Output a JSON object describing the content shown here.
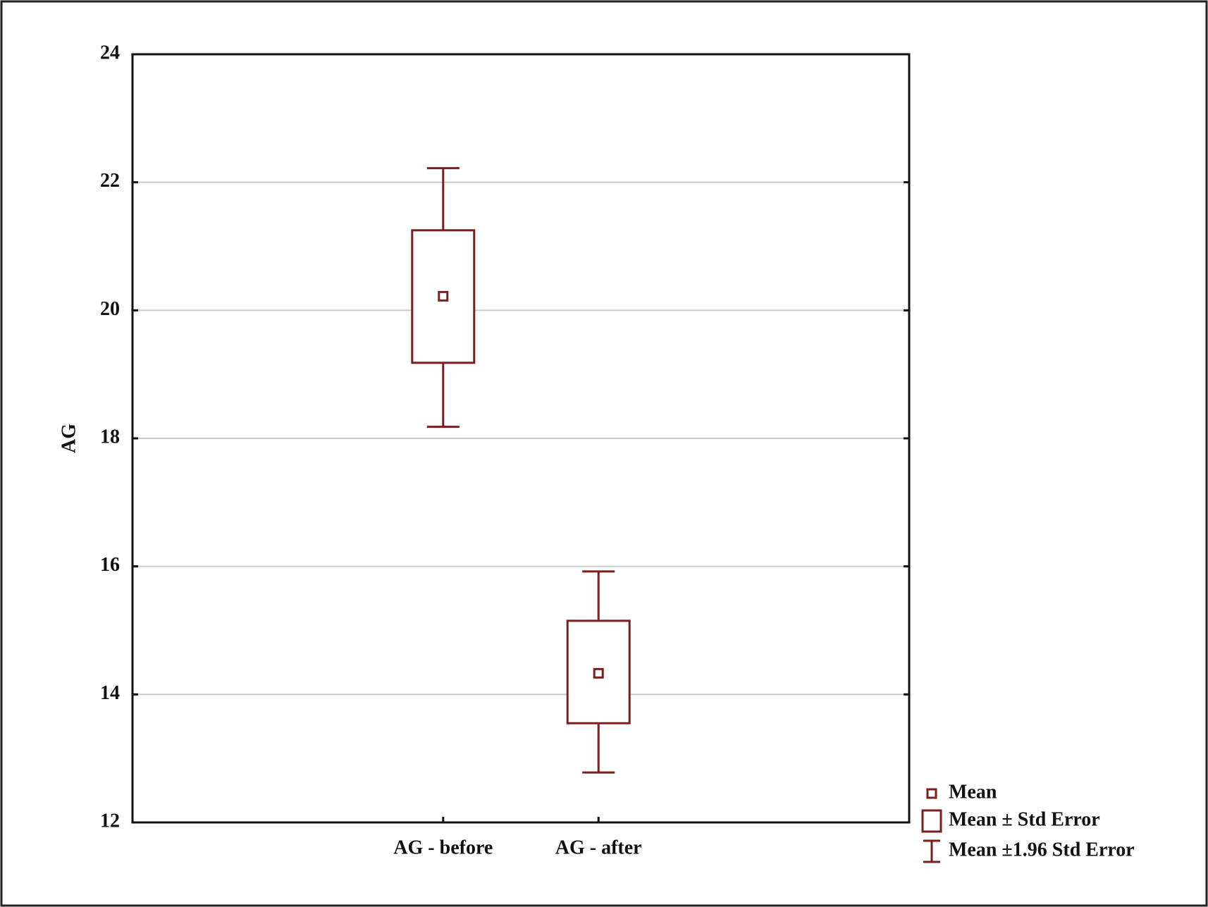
{
  "chart_data": {
    "type": "meanbox",
    "y_label": "AG",
    "categories": [
      "AG  - before",
      "AG - after"
    ],
    "mean": [
      20.22,
      14.33
    ],
    "se_low": [
      19.18,
      13.55
    ],
    "se_high": [
      21.25,
      15.15
    ],
    "ci_low": [
      18.18,
      12.78
    ],
    "ci_high": [
      22.22,
      15.92
    ],
    "color": "#7a1f1f",
    "ylim": [
      12,
      24
    ],
    "yticks": [
      12,
      14,
      16,
      18,
      20,
      22,
      24
    ],
    "grid": true,
    "legend": {
      "position": "bottom-right",
      "mean": "Mean",
      "se": "Mean ± Std Error",
      "ci": "Mean ±1.96 Std Error"
    }
  }
}
